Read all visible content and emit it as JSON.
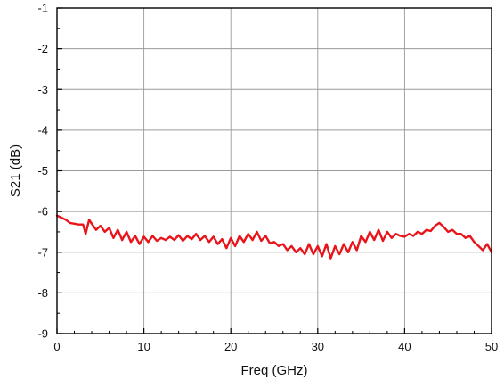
{
  "chart_data": {
    "type": "line",
    "xlabel": "Freq  (GHz)",
    "ylabel": "S21 (dB)",
    "xlim": [
      0,
      50
    ],
    "ylim": [
      -9,
      -1
    ],
    "xticks": [
      0,
      10,
      20,
      30,
      40,
      50
    ],
    "yticks": [
      -1,
      -2,
      -3,
      -4,
      -5,
      -6,
      -7,
      -8,
      -9
    ],
    "grid": true,
    "line_color": "#e8141a",
    "series": [
      {
        "x": [
          0,
          0.5,
          1,
          1.5,
          2,
          2.5,
          3,
          3.3,
          3.7,
          4,
          4.5,
          5,
          5.5,
          6,
          6.5,
          7,
          7.5,
          8,
          8.5,
          9,
          9.5,
          10,
          10.5,
          11,
          11.5,
          12,
          12.5,
          13,
          13.5,
          14,
          14.5,
          15,
          15.5,
          16,
          16.5,
          17,
          17.5,
          18,
          18.5,
          19,
          19.5,
          20,
          20.5,
          21,
          21.5,
          22,
          22.5,
          23,
          23.5,
          24,
          24.5,
          25,
          25.5,
          26,
          26.5,
          27,
          27.5,
          28,
          28.5,
          29,
          29.5,
          30,
          30.5,
          31,
          31.5,
          32,
          32.5,
          33,
          33.5,
          34,
          34.5,
          35,
          35.5,
          36,
          36.5,
          37,
          37.5,
          38,
          38.5,
          39,
          39.5,
          40,
          40.5,
          41,
          41.5,
          42,
          42.5,
          43,
          43.5,
          44,
          44.5,
          45,
          45.5,
          46,
          46.5,
          47,
          47.5,
          48,
          48.5,
          49,
          49.5,
          50
        ],
        "y": [
          -6.1,
          -6.15,
          -6.2,
          -6.28,
          -6.3,
          -6.32,
          -6.32,
          -6.55,
          -6.2,
          -6.3,
          -6.45,
          -6.35,
          -6.5,
          -6.4,
          -6.65,
          -6.45,
          -6.7,
          -6.5,
          -6.75,
          -6.6,
          -6.8,
          -6.62,
          -6.75,
          -6.6,
          -6.72,
          -6.65,
          -6.7,
          -6.62,
          -6.7,
          -6.58,
          -6.72,
          -6.6,
          -6.68,
          -6.55,
          -6.7,
          -6.6,
          -6.75,
          -6.62,
          -6.8,
          -6.68,
          -6.9,
          -6.65,
          -6.85,
          -6.6,
          -6.75,
          -6.55,
          -6.7,
          -6.5,
          -6.72,
          -6.6,
          -6.78,
          -6.75,
          -6.85,
          -6.8,
          -6.95,
          -6.85,
          -7.0,
          -6.9,
          -7.05,
          -6.8,
          -7.05,
          -6.85,
          -7.1,
          -6.8,
          -7.15,
          -6.85,
          -7.05,
          -6.8,
          -7.0,
          -6.75,
          -6.95,
          -6.6,
          -6.75,
          -6.5,
          -6.7,
          -6.45,
          -6.72,
          -6.5,
          -6.65,
          -6.55,
          -6.6,
          -6.62,
          -6.55,
          -6.6,
          -6.5,
          -6.55,
          -6.45,
          -6.48,
          -6.35,
          -6.28,
          -6.38,
          -6.5,
          -6.45,
          -6.55,
          -6.55,
          -6.65,
          -6.6,
          -6.75,
          -6.85,
          -6.95,
          -6.8,
          -7.0
        ]
      }
    ]
  }
}
